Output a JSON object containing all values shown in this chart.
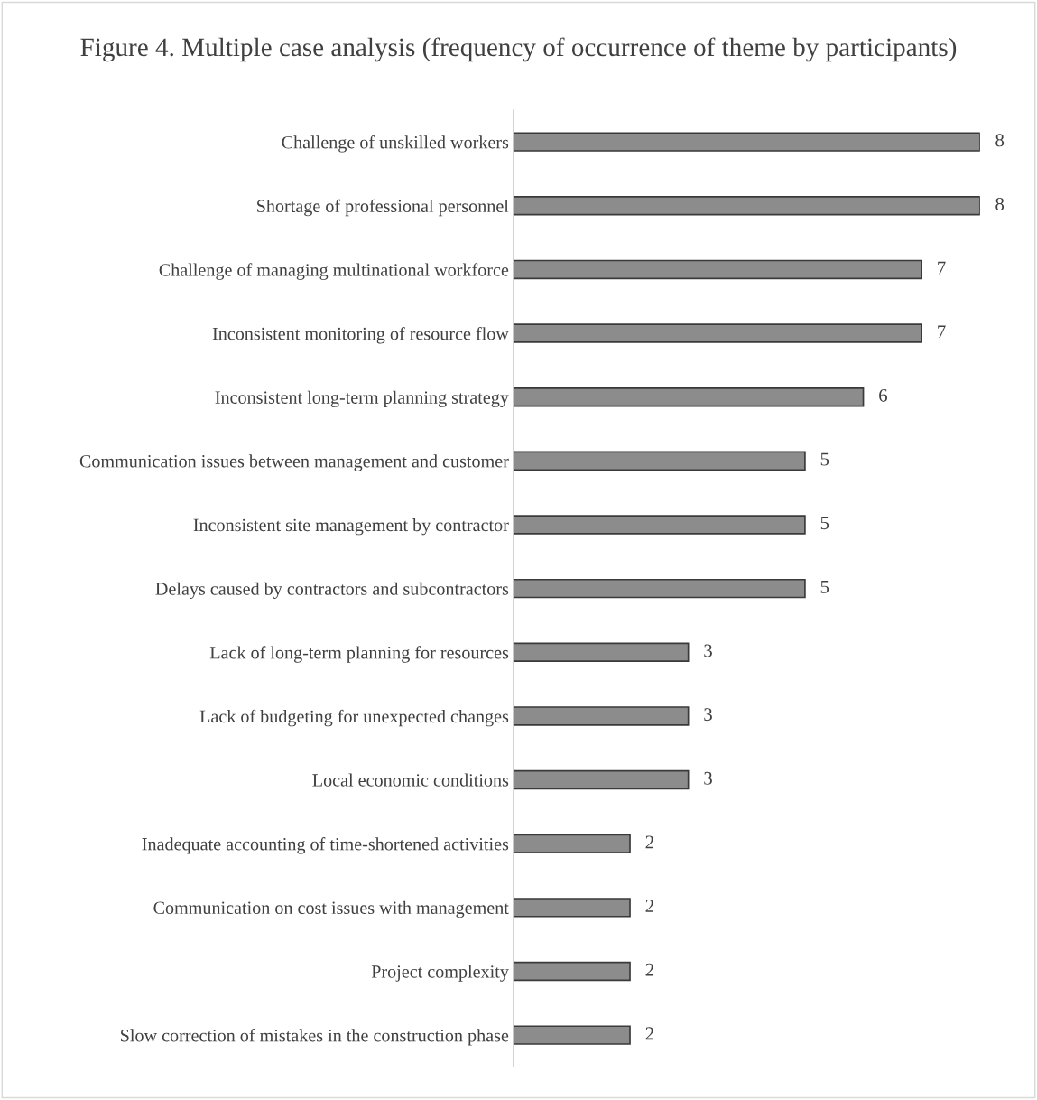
{
  "chart_data": {
    "type": "bar",
    "orientation": "horizontal",
    "title": "Figure 4. Multiple case analysis (frequency of occurrence of theme by participants)",
    "categories": [
      "Challenge of unskilled workers",
      "Shortage of professional personnel",
      "Challenge of managing multinational workforce",
      "Inconsistent monitoring of resource flow",
      "Inconsistent long-term planning strategy",
      "Communication issues between management and customer",
      "Inconsistent site management by contractor",
      "Delays caused by contractors and subcontractors",
      "Lack of long-term planning for resources",
      "Lack of budgeting for unexpected changes",
      "Local economic conditions",
      "Inadequate accounting of time-shortened activities",
      "Communication on cost issues with management",
      "Project complexity",
      "Slow correction of mistakes in the construction phase"
    ],
    "values": [
      8,
      8,
      7,
      7,
      6,
      5,
      5,
      5,
      3,
      3,
      3,
      2,
      2,
      2,
      2
    ],
    "color": "#8c8c8c",
    "data_labels": true,
    "tick_labels": "y",
    "grid": false,
    "legend": false
  }
}
